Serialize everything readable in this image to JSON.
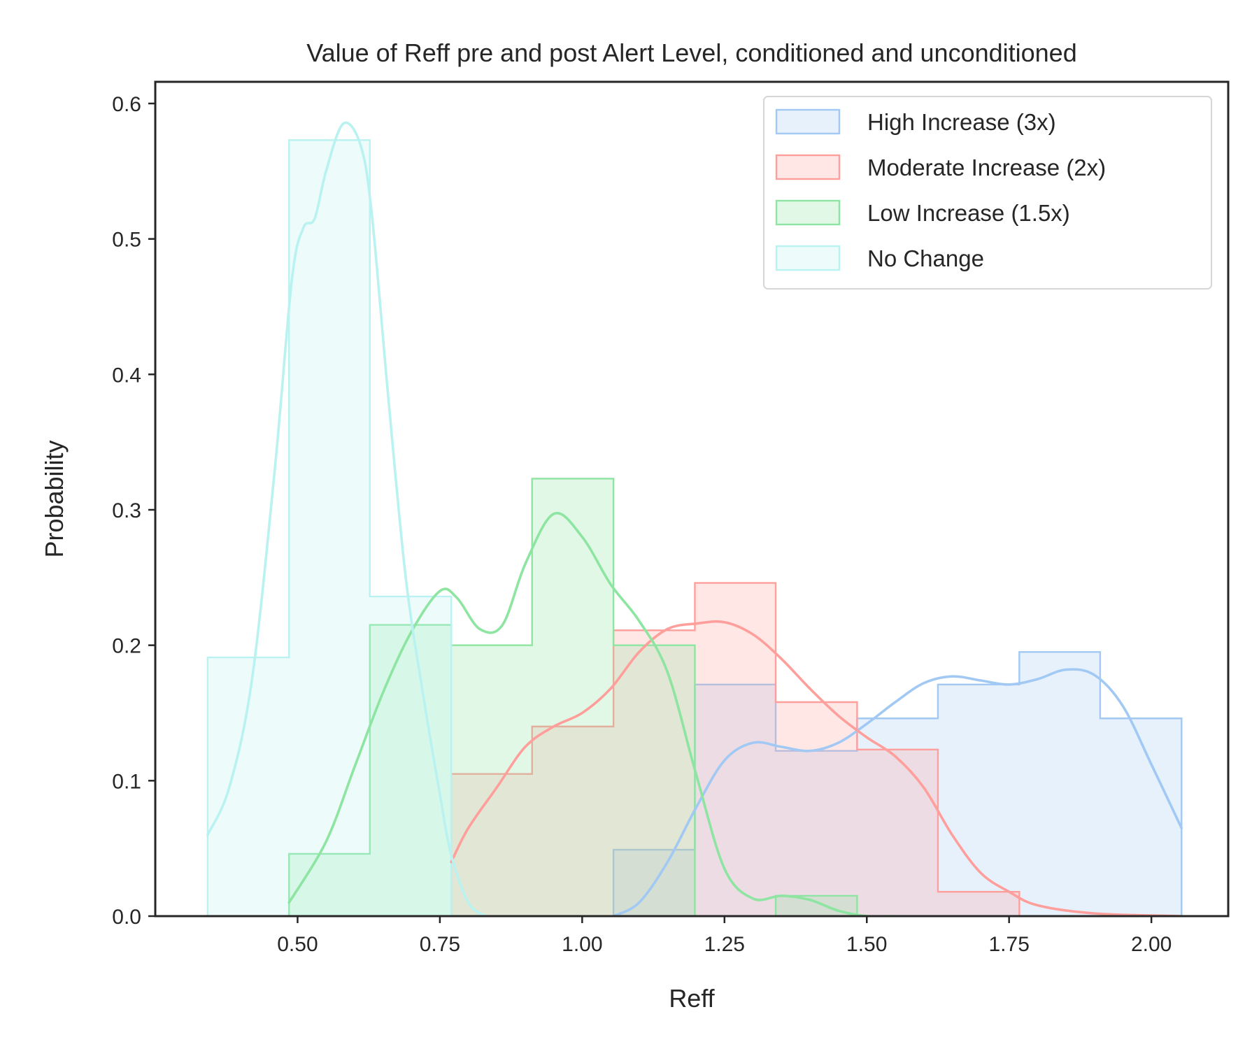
{
  "chart_data": {
    "type": "histogram",
    "title": "Value of Reff pre and post Alert Level, conditioned and unconditioned",
    "xlabel": "Reff",
    "ylabel": "Probability",
    "xlim": [
      0.25,
      2.135
    ],
    "ylim": [
      0,
      0.616
    ],
    "xticks": [
      0.5,
      0.75,
      1.0,
      1.25,
      1.5,
      1.75,
      2.0
    ],
    "xtick_labels": [
      "0.50",
      "0.75",
      "1.00",
      "1.25",
      "1.50",
      "1.75",
      "2.00"
    ],
    "yticks": [
      0.0,
      0.1,
      0.2,
      0.3,
      0.4,
      0.5,
      0.6
    ],
    "ytick_labels": [
      "0.0",
      "0.1",
      "0.2",
      "0.3",
      "0.4",
      "0.5",
      "0.6"
    ],
    "grid": false,
    "legend_position": "top-right",
    "histogram_style": "step-filled with KDE overlay",
    "series": [
      {
        "name": "High Increase (3x)",
        "color": "#a1c9f4",
        "bin_edges": [
          1.055,
          1.198,
          1.34,
          1.483,
          1.625,
          1.768,
          1.91,
          2.053
        ],
        "values": [
          0.049,
          0.171,
          0.122,
          0.146,
          0.171,
          0.195,
          0.146
        ],
        "kde": [
          [
            1.055,
            0.0
          ],
          [
            1.1,
            0.01
          ],
          [
            1.15,
            0.04
          ],
          [
            1.2,
            0.08
          ],
          [
            1.25,
            0.115
          ],
          [
            1.3,
            0.128
          ],
          [
            1.35,
            0.125
          ],
          [
            1.4,
            0.122
          ],
          [
            1.45,
            0.128
          ],
          [
            1.5,
            0.142
          ],
          [
            1.55,
            0.158
          ],
          [
            1.6,
            0.172
          ],
          [
            1.65,
            0.177
          ],
          [
            1.7,
            0.174
          ],
          [
            1.75,
            0.171
          ],
          [
            1.8,
            0.175
          ],
          [
            1.85,
            0.182
          ],
          [
            1.9,
            0.178
          ],
          [
            1.95,
            0.155
          ],
          [
            2.0,
            0.112
          ],
          [
            2.053,
            0.065
          ]
        ]
      },
      {
        "name": "Moderate Increase (2x)",
        "color": "#ff9f9b",
        "bin_edges": [
          0.77,
          0.912,
          1.055,
          1.198,
          1.34,
          1.483,
          1.625,
          1.768
        ],
        "values": [
          0.105,
          0.14,
          0.211,
          0.246,
          0.158,
          0.123,
          0.018
        ],
        "kde": [
          [
            0.77,
            0.04
          ],
          [
            0.8,
            0.065
          ],
          [
            0.85,
            0.095
          ],
          [
            0.9,
            0.125
          ],
          [
            0.95,
            0.14
          ],
          [
            1.0,
            0.15
          ],
          [
            1.05,
            0.168
          ],
          [
            1.1,
            0.195
          ],
          [
            1.15,
            0.212
          ],
          [
            1.2,
            0.216
          ],
          [
            1.25,
            0.217
          ],
          [
            1.3,
            0.208
          ],
          [
            1.35,
            0.19
          ],
          [
            1.4,
            0.168
          ],
          [
            1.45,
            0.148
          ],
          [
            1.5,
            0.132
          ],
          [
            1.55,
            0.118
          ],
          [
            1.6,
            0.095
          ],
          [
            1.65,
            0.06
          ],
          [
            1.7,
            0.032
          ],
          [
            1.75,
            0.018
          ],
          [
            1.8,
            0.008
          ],
          [
            1.9,
            0.002
          ],
          [
            2.053,
            0.0
          ]
        ]
      },
      {
        "name": "Low Increase (1.5x)",
        "color": "#8de5a1",
        "bin_edges": [
          0.485,
          0.627,
          0.77,
          0.912,
          1.055,
          1.198,
          1.34,
          1.483
        ],
        "values": [
          0.046,
          0.215,
          0.2,
          0.323,
          0.2,
          0.0,
          0.015
        ],
        "kde": [
          [
            0.485,
            0.01
          ],
          [
            0.55,
            0.055
          ],
          [
            0.6,
            0.11
          ],
          [
            0.65,
            0.165
          ],
          [
            0.7,
            0.21
          ],
          [
            0.75,
            0.24
          ],
          [
            0.78,
            0.235
          ],
          [
            0.82,
            0.212
          ],
          [
            0.86,
            0.215
          ],
          [
            0.9,
            0.26
          ],
          [
            0.95,
            0.297
          ],
          [
            1.0,
            0.28
          ],
          [
            1.05,
            0.245
          ],
          [
            1.1,
            0.218
          ],
          [
            1.15,
            0.18
          ],
          [
            1.2,
            0.105
          ],
          [
            1.25,
            0.035
          ],
          [
            1.3,
            0.013
          ],
          [
            1.35,
            0.015
          ],
          [
            1.4,
            0.012
          ],
          [
            1.45,
            0.004
          ],
          [
            1.5,
            0.0
          ],
          [
            1.55,
            0.0
          ]
        ]
      },
      {
        "name": "No Change",
        "color": "#b9f2f0",
        "bin_edges": [
          0.342,
          0.485,
          0.627,
          0.77
        ],
        "values": [
          0.191,
          0.573,
          0.236
        ],
        "kde": [
          [
            0.342,
            0.06
          ],
          [
            0.38,
            0.095
          ],
          [
            0.42,
            0.175
          ],
          [
            0.46,
            0.33
          ],
          [
            0.49,
            0.47
          ],
          [
            0.51,
            0.508
          ],
          [
            0.53,
            0.515
          ],
          [
            0.55,
            0.55
          ],
          [
            0.58,
            0.585
          ],
          [
            0.61,
            0.57
          ],
          [
            0.63,
            0.52
          ],
          [
            0.66,
            0.38
          ],
          [
            0.69,
            0.25
          ],
          [
            0.72,
            0.165
          ],
          [
            0.75,
            0.09
          ],
          [
            0.77,
            0.045
          ],
          [
            0.8,
            0.01
          ],
          [
            0.83,
            0.0
          ]
        ]
      }
    ]
  }
}
